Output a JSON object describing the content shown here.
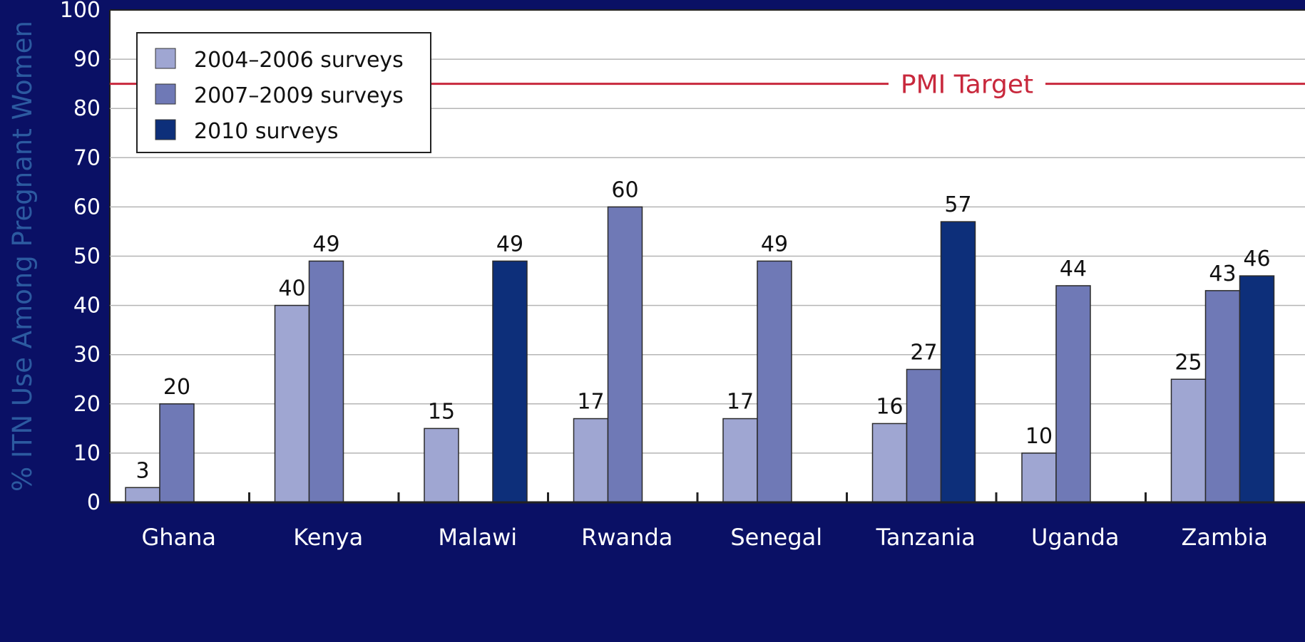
{
  "chart_data": {
    "type": "bar",
    "title": "",
    "xlabel": "",
    "ylabel": "% ITN Use Among Pregnant Women",
    "ylim": [
      0,
      100
    ],
    "yticks": [
      0,
      10,
      20,
      30,
      40,
      50,
      60,
      70,
      80,
      90,
      100
    ],
    "grid": true,
    "legend_position": "top-left",
    "categories": [
      "Ghana",
      "Kenya",
      "Malawi",
      "Rwanda",
      "Senegal",
      "Tanzania",
      "Uganda",
      "Zambia"
    ],
    "series": [
      {
        "name": "2004–2006 surveys",
        "color": "#9fa6d2",
        "values": [
          3,
          40,
          15,
          17,
          17,
          16,
          10,
          25
        ]
      },
      {
        "name": "2007–2009 surveys",
        "color": "#6f79b6",
        "values": [
          20,
          49,
          null,
          60,
          49,
          27,
          44,
          43
        ]
      },
      {
        "name": "2010 surveys",
        "color": "#0d2f7a",
        "values": [
          null,
          null,
          49,
          null,
          null,
          57,
          null,
          46
        ]
      }
    ],
    "reference_line": {
      "label": "PMI Target",
      "value": 85,
      "color": "#c8283c"
    },
    "colors": {
      "page_background": "#0a1065",
      "plot_background": "#ffffff",
      "axis_label": "#2c5aa0",
      "text": "#111111"
    }
  }
}
